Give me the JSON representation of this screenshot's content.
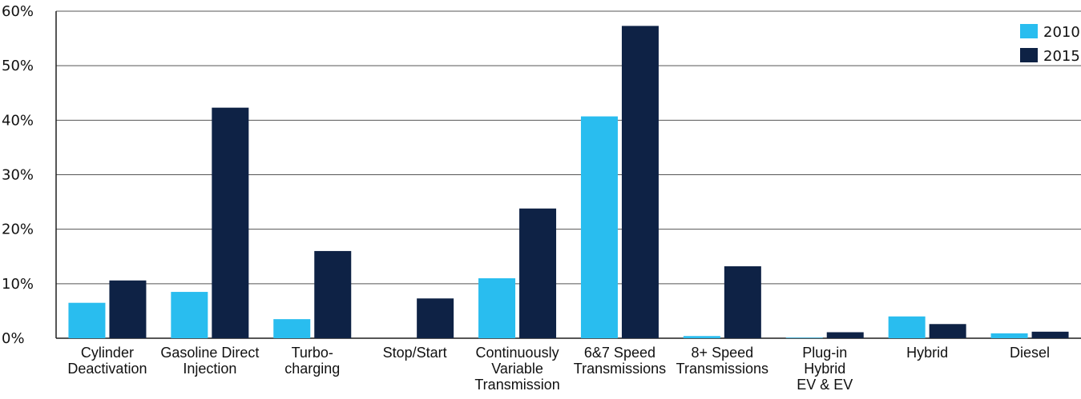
{
  "chart_data": {
    "type": "bar",
    "categories": [
      [
        "Cylinder",
        "Deactivation"
      ],
      [
        "Gasoline Direct",
        "Injection"
      ],
      [
        "Turbo-",
        "charging"
      ],
      [
        "Stop/Start"
      ],
      [
        "Continuously",
        "Variable",
        "Transmission"
      ],
      [
        "6&7 Speed",
        "Transmissions"
      ],
      [
        "8+ Speed",
        "Transmissions"
      ],
      [
        "Plug-in",
        "Hybrid",
        "EV & EV"
      ],
      [
        "Hybrid"
      ],
      [
        "Diesel"
      ]
    ],
    "series": [
      {
        "name": "2010",
        "color": "#29bdef",
        "values": [
          6.5,
          8.5,
          3.5,
          0.0,
          11.0,
          40.7,
          0.4,
          0.1,
          4.0,
          0.9
        ]
      },
      {
        "name": "2015",
        "color": "#0e2245",
        "values": [
          10.6,
          42.3,
          16.0,
          7.3,
          23.8,
          57.3,
          13.2,
          1.1,
          2.6,
          1.2
        ]
      }
    ],
    "yticks": [
      "0%",
      "10%",
      "20%",
      "30%",
      "40%",
      "50%",
      "60%"
    ],
    "ylim": [
      0,
      60
    ],
    "grid": true,
    "legend_position": "top-right"
  }
}
